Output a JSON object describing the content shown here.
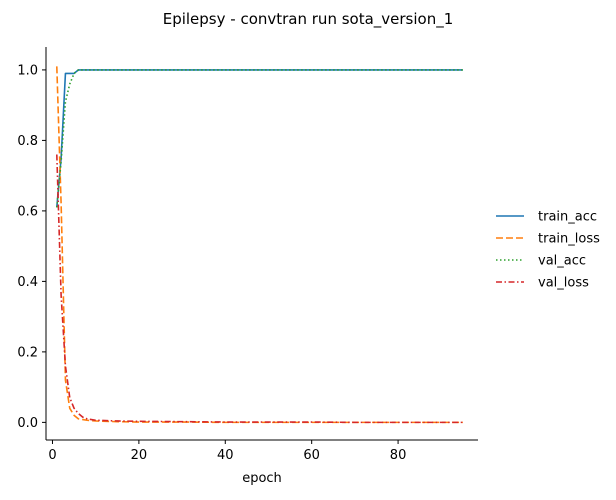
{
  "chart_data": {
    "type": "line",
    "title": "Epilepsy - convtran run sota_version_1",
    "xlabel": "epoch",
    "ylabel": "",
    "xlim": [
      -1.5,
      98.5
    ],
    "ylim": [
      -0.05,
      1.065
    ],
    "xticks": [
      0,
      20,
      40,
      60,
      80
    ],
    "yticks": [
      0.0,
      0.2,
      0.4,
      0.6,
      0.8,
      1.0
    ],
    "ytick_labels": [
      "0.0",
      "0.2",
      "0.4",
      "0.6",
      "0.8",
      "1.0"
    ],
    "xtick_labels": [
      "0",
      "20",
      "40",
      "60",
      "80"
    ],
    "grid": false,
    "legend_placement": "right",
    "series": [
      {
        "name": "train_acc",
        "color": "#1f77b4",
        "dash": "solid",
        "x": [
          1,
          2,
          3,
          4,
          5,
          6,
          7,
          8,
          10,
          15,
          20,
          30,
          40,
          50,
          60,
          70,
          80,
          90,
          95
        ],
        "y": [
          0.61,
          0.75,
          0.99,
          0.99,
          0.99,
          1.0,
          1.0,
          1.0,
          1.0,
          1.0,
          1.0,
          1.0,
          1.0,
          1.0,
          1.0,
          1.0,
          1.0,
          1.0,
          1.0
        ]
      },
      {
        "name": "train_loss",
        "color": "#ff7f0e",
        "dash": "dashed",
        "x": [
          1,
          2,
          3,
          4,
          5,
          6,
          7,
          8,
          10,
          15,
          20,
          30,
          40,
          50,
          60,
          70,
          80,
          90,
          95
        ],
        "y": [
          1.01,
          0.62,
          0.12,
          0.04,
          0.02,
          0.01,
          0.008,
          0.006,
          0.004,
          0.002,
          0.001,
          0.001,
          0.0,
          0.0,
          0.0,
          0.0,
          0.0,
          0.0,
          0.0
        ]
      },
      {
        "name": "val_acc",
        "color": "#2ca02c",
        "dash": "dotted",
        "x": [
          1,
          2,
          3,
          4,
          5,
          6,
          7,
          8,
          10,
          15,
          20,
          30,
          40,
          50,
          60,
          70,
          80,
          90,
          95
        ],
        "y": [
          0.61,
          0.74,
          0.91,
          0.96,
          0.99,
          1.0,
          1.0,
          1.0,
          1.0,
          1.0,
          1.0,
          1.0,
          1.0,
          1.0,
          1.0,
          1.0,
          1.0,
          1.0,
          1.0
        ]
      },
      {
        "name": "val_loss",
        "color": "#d62728",
        "dash": "dashdot",
        "x": [
          1,
          2,
          3,
          4,
          5,
          6,
          7,
          8,
          10,
          15,
          20,
          30,
          40,
          50,
          60,
          70,
          80,
          90,
          95
        ],
        "y": [
          0.76,
          0.36,
          0.16,
          0.07,
          0.04,
          0.025,
          0.015,
          0.01,
          0.006,
          0.004,
          0.003,
          0.002,
          0.001,
          0.001,
          0.001,
          0.0,
          0.0,
          0.0,
          0.0
        ]
      }
    ]
  }
}
